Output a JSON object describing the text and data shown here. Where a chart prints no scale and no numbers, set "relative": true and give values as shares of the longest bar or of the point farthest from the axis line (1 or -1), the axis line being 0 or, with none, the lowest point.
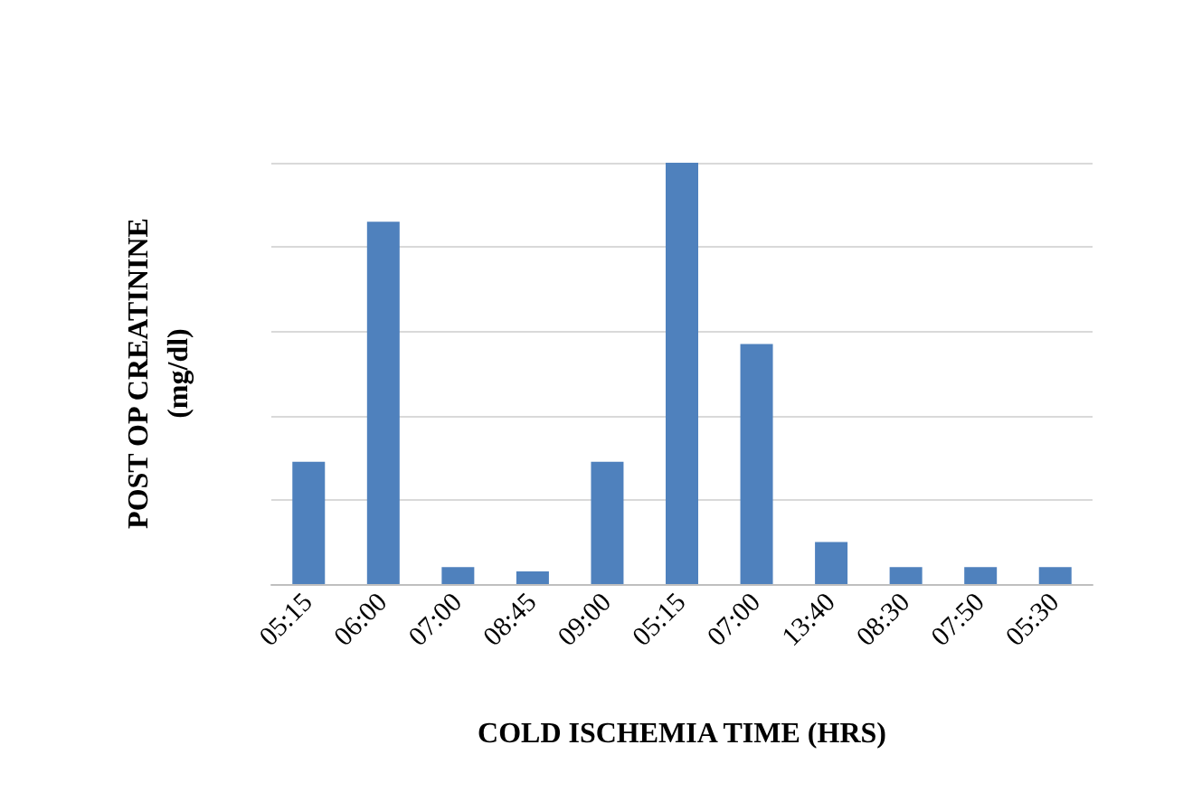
{
  "chart_data": {
    "type": "bar",
    "relative": true,
    "xlabel": "COLD ISCHEMIA TIME (HRS)",
    "ylabel": "POST OP CREATININE\n(mg/dl)",
    "categories": [
      "05:15",
      "06:00",
      "07:00",
      "08:45",
      "09:00",
      "05:15",
      "07:00",
      "13:40",
      "08:30",
      "07:50",
      "05:30"
    ],
    "values": [
      0.29,
      0.86,
      0.04,
      0.03,
      0.29,
      1,
      0.57,
      0.1,
      0.04,
      0.04,
      0.04
    ],
    "color": "#4f81bd",
    "grid": "y"
  }
}
